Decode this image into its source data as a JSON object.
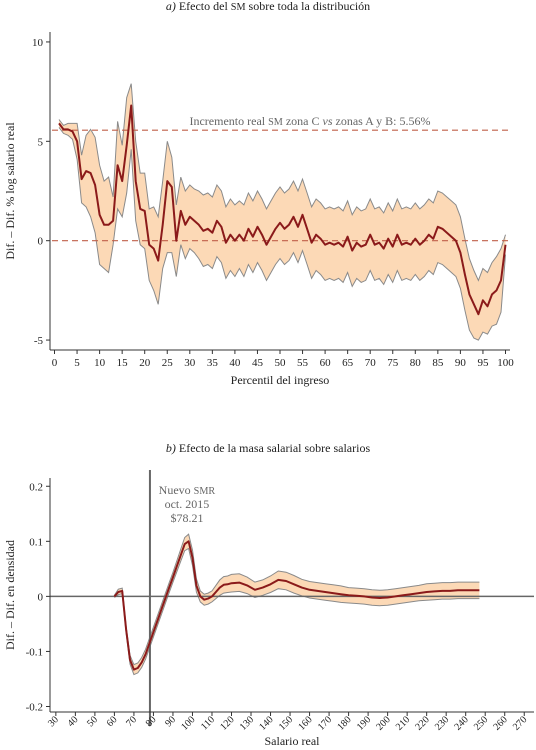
{
  "chart_data": [
    {
      "type": "line",
      "title": "a) Efecto del sm sobre toda la distribución",
      "title_parts": [
        {
          "text": "a)",
          "style": "italic"
        },
        {
          "text": " Efecto del "
        },
        {
          "text": "sm",
          "style": "smallcaps"
        },
        {
          "text": " sobre toda la distribución"
        }
      ],
      "xlabel": "Percentil del ingreso",
      "ylabel": "Dif. – Dif.  % log salario real",
      "xlim": [
        -1,
        101
      ],
      "ylim": [
        -5.5,
        10.5
      ],
      "xticks": [
        0,
        5,
        10,
        15,
        20,
        25,
        30,
        35,
        40,
        45,
        50,
        55,
        60,
        65,
        70,
        75,
        80,
        85,
        90,
        95,
        100
      ],
      "yticks": [
        -5,
        0,
        5,
        10
      ],
      "grid": false,
      "reference_lines": [
        {
          "axis": "y",
          "value": 5.56,
          "style": "dashed",
          "label": "Incremento real sm zona C vs zonas A y B: 5.56%"
        },
        {
          "axis": "y",
          "value": 0,
          "style": "dashed"
        }
      ],
      "annotation_parts": [
        {
          "text": "Incremento real "
        },
        {
          "text": "sm",
          "style": "smallcaps"
        },
        {
          "text": " zona C "
        },
        {
          "text": "vs",
          "style": "italic"
        },
        {
          "text": " zonas A y B: 5.56%"
        }
      ],
      "x": [
        1,
        2,
        3,
        4,
        5,
        6,
        7,
        8,
        9,
        10,
        11,
        12,
        13,
        14,
        15,
        16,
        17,
        18,
        19,
        20,
        21,
        22,
        23,
        24,
        25,
        26,
        27,
        28,
        29,
        30,
        31,
        32,
        33,
        34,
        35,
        36,
        37,
        38,
        39,
        40,
        41,
        42,
        43,
        44,
        45,
        46,
        47,
        48,
        49,
        50,
        51,
        52,
        53,
        54,
        55,
        56,
        57,
        58,
        59,
        60,
        61,
        62,
        63,
        64,
        65,
        66,
        67,
        68,
        69,
        70,
        71,
        72,
        73,
        74,
        75,
        76,
        77,
        78,
        79,
        80,
        81,
        82,
        83,
        84,
        85,
        86,
        87,
        88,
        89,
        90,
        91,
        92,
        93,
        94,
        95,
        96,
        97,
        98,
        99,
        100
      ],
      "estimate": [
        5.9,
        5.6,
        5.6,
        5.5,
        5.0,
        3.1,
        3.5,
        3.4,
        2.8,
        1.3,
        0.8,
        0.8,
        1.0,
        3.8,
        3.0,
        4.8,
        6.8,
        3.0,
        1.6,
        1.5,
        -0.2,
        -0.4,
        -1.0,
        0.8,
        3.0,
        2.7,
        0.0,
        1.5,
        0.8,
        1.2,
        1.0,
        0.8,
        0.5,
        0.6,
        0.4,
        1.0,
        0.7,
        -0.1,
        0.3,
        0.0,
        0.3,
        0.0,
        0.6,
        0.2,
        0.7,
        0.3,
        -0.2,
        0.2,
        0.6,
        0.9,
        0.6,
        0.8,
        1.2,
        0.7,
        1.3,
        0.6,
        -0.1,
        0.3,
        0.1,
        -0.2,
        -0.1,
        -0.2,
        -0.1,
        -0.3,
        0.2,
        -0.5,
        -0.1,
        -0.3,
        -0.2,
        0.3,
        -0.2,
        -0.1,
        -0.4,
        0.1,
        -0.3,
        0.3,
        -0.2,
        -0.1,
        -0.2,
        0.1,
        -0.2,
        0.0,
        0.3,
        0.1,
        0.7,
        0.6,
        0.4,
        0.2,
        0.0,
        -0.6,
        -1.7,
        -2.7,
        -3.2,
        -3.7,
        -3.0,
        -3.3,
        -2.7,
        -2.5,
        -2.0,
        -0.2
      ],
      "lower": [
        5.7,
        5.4,
        5.3,
        5.1,
        4.1,
        1.9,
        1.7,
        1.2,
        0.4,
        -1.2,
        -1.4,
        -1.6,
        -0.2,
        1.6,
        1.2,
        2.4,
        4.6,
        1.0,
        -0.2,
        -0.4,
        -2.0,
        -2.5,
        -3.2,
        -1.4,
        -0.6,
        -0.6,
        -1.8,
        -0.2,
        -0.9,
        -0.4,
        -0.6,
        -0.9,
        -1.3,
        -1.2,
        -1.4,
        -0.8,
        -1.1,
        -1.9,
        -1.5,
        -1.8,
        -1.4,
        -1.8,
        -1.2,
        -1.6,
        -1.1,
        -1.5,
        -2.0,
        -1.6,
        -1.2,
        -0.9,
        -1.2,
        -1.0,
        -0.6,
        -1.1,
        -0.5,
        -1.2,
        -1.9,
        -1.5,
        -1.7,
        -2.0,
        -1.9,
        -2.0,
        -1.9,
        -2.1,
        -1.6,
        -2.3,
        -1.9,
        -2.1,
        -2.0,
        -1.5,
        -2.0,
        -1.9,
        -2.2,
        -1.7,
        -2.1,
        -1.5,
        -2.0,
        -1.9,
        -2.0,
        -1.7,
        -2.0,
        -1.8,
        -1.5,
        -1.7,
        -1.1,
        -1.2,
        -1.4,
        -1.6,
        -1.8,
        -2.4,
        -3.5,
        -4.5,
        -4.9,
        -5.0,
        -4.6,
        -4.7,
        -4.3,
        -4.2,
        -3.6,
        -0.7
      ],
      "upper": [
        6.1,
        5.8,
        5.9,
        5.9,
        5.9,
        4.3,
        5.3,
        5.6,
        5.2,
        3.8,
        3.0,
        3.2,
        2.2,
        6.0,
        4.8,
        7.2,
        7.9,
        5.0,
        3.4,
        3.4,
        1.6,
        1.7,
        1.2,
        3.0,
        5.0,
        4.2,
        1.8,
        3.2,
        2.5,
        2.8,
        2.6,
        2.5,
        2.3,
        2.4,
        2.2,
        2.8,
        2.5,
        1.7,
        2.1,
        1.8,
        2.0,
        1.8,
        2.4,
        2.0,
        2.5,
        2.1,
        1.6,
        2.0,
        2.4,
        2.7,
        2.4,
        2.6,
        3.0,
        2.5,
        3.1,
        2.4,
        1.7,
        2.1,
        1.9,
        1.6,
        1.7,
        1.6,
        1.7,
        1.5,
        2.0,
        1.3,
        1.7,
        1.5,
        1.6,
        2.1,
        1.6,
        1.7,
        1.4,
        1.9,
        1.5,
        2.1,
        1.6,
        1.7,
        1.6,
        1.9,
        1.6,
        1.8,
        2.1,
        1.9,
        2.5,
        2.4,
        2.2,
        2.0,
        1.8,
        1.2,
        0.1,
        -0.9,
        -1.5,
        -2.0,
        -1.4,
        -1.6,
        -1.1,
        -0.8,
        -0.4,
        0.3
      ]
    },
    {
      "type": "line",
      "title": "b) Efecto de la masa salarial sobre salarios",
      "title_parts": [
        {
          "text": "b)",
          "style": "italic"
        },
        {
          "text": " Efecto de la masa salarial sobre salarios"
        }
      ],
      "xlabel": "Salario real",
      "ylabel": "Dif. – Dif. en densidad",
      "xlim": [
        27,
        275
      ],
      "ylim": [
        -0.21,
        0.215
      ],
      "xticks": [
        30,
        40,
        50,
        60,
        70,
        80,
        90,
        100,
        110,
        120,
        130,
        140,
        150,
        160,
        170,
        180,
        190,
        200,
        210,
        220,
        230,
        240,
        250,
        260,
        270
      ],
      "yticks": [
        -0.2,
        -0.1,
        0,
        0.1,
        0.2
      ],
      "ytick_labels": [
        "-0.2",
        "-0.1",
        "0",
        "0.1",
        "0.2"
      ],
      "grid": false,
      "reference_lines": [
        {
          "axis": "y",
          "value": 0,
          "style": "solid"
        },
        {
          "axis": "x",
          "value": 78.21,
          "style": "solid",
          "label": "Nuevo smr oct. 2015 $78.21"
        }
      ],
      "annotation_lines": [
        [
          {
            "text": "Nuevo "
          },
          {
            "text": "smr",
            "style": "smallcaps"
          }
        ],
        [
          {
            "text": "oct. 2015"
          }
        ],
        [
          {
            "text": "$78.21"
          }
        ]
      ],
      "x": [
        60,
        62,
        64,
        66,
        68,
        70,
        72,
        74,
        76,
        78,
        80,
        82,
        84,
        86,
        88,
        90,
        92,
        94,
        96,
        98,
        100,
        102,
        104,
        106,
        108,
        110,
        112,
        114,
        116,
        118,
        120,
        124,
        128,
        132,
        136,
        140,
        144,
        148,
        152,
        156,
        160,
        164,
        168,
        172,
        176,
        180,
        184,
        188,
        192,
        196,
        200,
        204,
        208,
        212,
        216,
        220,
        224,
        228,
        232,
        236,
        240,
        244,
        247
      ],
      "estimate": [
        0.0,
        0.008,
        0.01,
        -0.06,
        -0.115,
        -0.133,
        -0.13,
        -0.12,
        -0.105,
        -0.085,
        -0.065,
        -0.045,
        -0.025,
        -0.005,
        0.015,
        0.035,
        0.055,
        0.075,
        0.095,
        0.1,
        0.07,
        0.02,
        0.0,
        -0.006,
        -0.004,
        0.0,
        0.008,
        0.016,
        0.021,
        0.022,
        0.024,
        0.025,
        0.02,
        0.012,
        0.016,
        0.022,
        0.03,
        0.028,
        0.022,
        0.016,
        0.012,
        0.01,
        0.008,
        0.006,
        0.004,
        0.002,
        0.001,
        0.0,
        -0.002,
        -0.003,
        -0.002,
        0.0,
        0.002,
        0.004,
        0.006,
        0.008,
        0.009,
        0.01,
        0.01,
        0.011,
        0.011,
        0.011,
        0.011
      ],
      "lower": [
        -0.002,
        0.003,
        0.005,
        -0.066,
        -0.123,
        -0.142,
        -0.139,
        -0.129,
        -0.114,
        -0.094,
        -0.074,
        -0.054,
        -0.034,
        -0.014,
        0.006,
        0.026,
        0.045,
        0.064,
        0.083,
        0.087,
        0.056,
        0.008,
        -0.01,
        -0.016,
        -0.014,
        -0.01,
        -0.004,
        0.002,
        0.006,
        0.007,
        0.008,
        0.009,
        0.005,
        -0.002,
        0.002,
        0.007,
        0.014,
        0.012,
        0.006,
        0.001,
        -0.003,
        -0.005,
        -0.007,
        -0.009,
        -0.011,
        -0.012,
        -0.013,
        -0.014,
        -0.016,
        -0.017,
        -0.016,
        -0.014,
        -0.012,
        -0.01,
        -0.008,
        -0.007,
        -0.006,
        -0.005,
        -0.005,
        -0.004,
        -0.004,
        -0.004,
        -0.004
      ],
      "upper": [
        0.002,
        0.013,
        0.015,
        -0.054,
        -0.107,
        -0.124,
        -0.121,
        -0.111,
        -0.096,
        -0.076,
        -0.056,
        -0.036,
        -0.016,
        0.004,
        0.024,
        0.044,
        0.065,
        0.086,
        0.107,
        0.113,
        0.084,
        0.032,
        0.01,
        0.004,
        0.006,
        0.01,
        0.02,
        0.03,
        0.036,
        0.037,
        0.04,
        0.041,
        0.035,
        0.026,
        0.03,
        0.037,
        0.046,
        0.044,
        0.038,
        0.031,
        0.027,
        0.025,
        0.023,
        0.021,
        0.019,
        0.016,
        0.015,
        0.014,
        0.012,
        0.011,
        0.012,
        0.014,
        0.016,
        0.018,
        0.02,
        0.023,
        0.024,
        0.025,
        0.025,
        0.026,
        0.026,
        0.026,
        0.026
      ]
    }
  ],
  "colors": {
    "estimate_line": "#8b1a1a",
    "band_fill": "#fcd9b6",
    "band_edge": "#8a8a8a",
    "reference_dashed": "#c0604a",
    "axis": "#333333",
    "reference_solid": "#666666"
  }
}
